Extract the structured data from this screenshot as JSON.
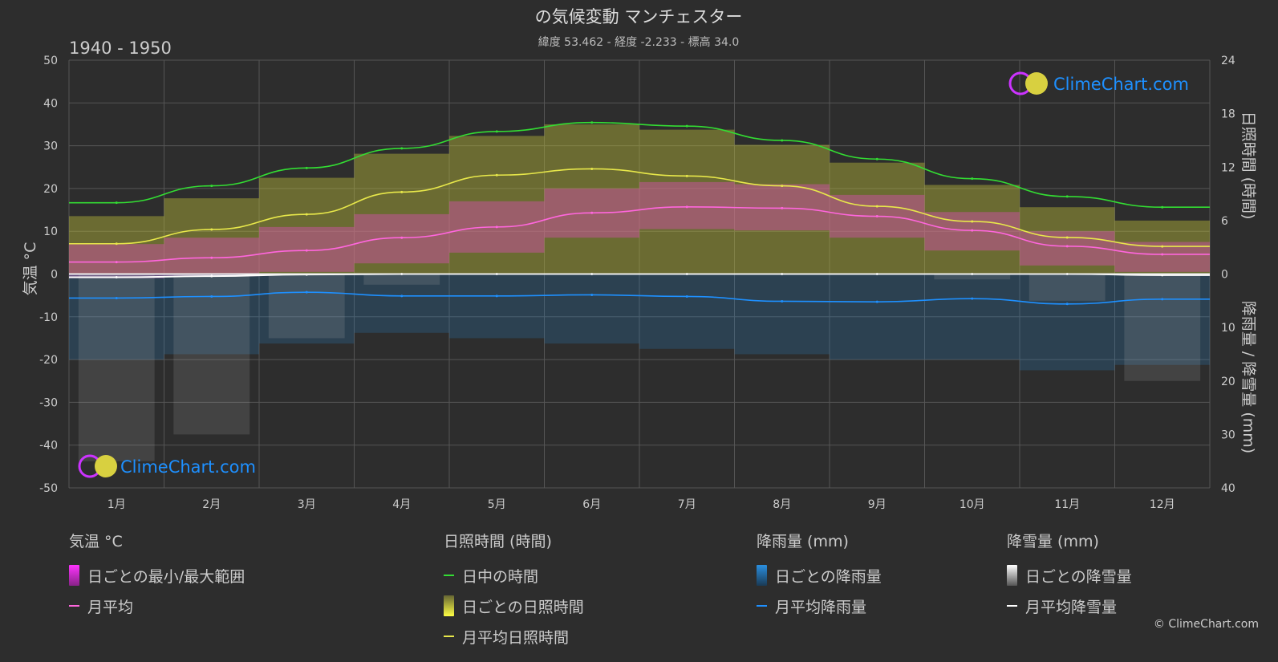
{
  "title": "の気候変動 マンチェスター",
  "subtitle": "緯度 53.462 - 経度 -2.233 - 標高 34.0",
  "period": "1940 - 1950",
  "brand": "ClimeChart.com",
  "copyright": "© ClimeChart.com",
  "colors": {
    "background": "#2d2d2d",
    "grid": "#555555",
    "daylight": "#33dd33",
    "sunshine_mean": "#e8e84a",
    "sunshine_band": "#b8b83a",
    "temp_band": "#d84fb0",
    "temp_mean": "#ff66dd",
    "rain_band": "#2a7fc0",
    "rain_mean": "#1e90ff",
    "snow_band": "#aaaaaa",
    "snow_mean": "#ffffff",
    "brand_text": "#1e90ff"
  },
  "legend": {
    "temp": {
      "heading": "気温 °C",
      "range": "日ごとの最小/最大範囲",
      "mean": "月平均"
    },
    "sun": {
      "heading": "日照時間 (時間)",
      "daylight": "日中の時間",
      "daily": "日ごとの日照時間",
      "mean": "月平均日照時間"
    },
    "rain": {
      "heading": "降雨量 (mm)",
      "daily": "日ごとの降雨量",
      "mean": "月平均降雨量"
    },
    "snow": {
      "heading": "降雪量 (mm)",
      "daily": "日ごとの降雪量",
      "mean": "月平均降雪量"
    }
  },
  "chart_data": {
    "type": "line",
    "categories": [
      "1月",
      "2月",
      "3月",
      "4月",
      "5月",
      "6月",
      "7月",
      "8月",
      "9月",
      "10月",
      "11月",
      "12月"
    ],
    "y_left": {
      "label": "気温 °C",
      "range": [
        -50,
        50
      ],
      "ticks": [
        50,
        40,
        30,
        20,
        10,
        0,
        -10,
        -20,
        -30,
        -40,
        -50
      ]
    },
    "y_right_top": {
      "label": "日照時間 (時間)",
      "range": [
        0,
        24
      ],
      "ticks": [
        24,
        18,
        12,
        6,
        0
      ]
    },
    "y_right_bottom": {
      "label": "降雨量 / 降雪量 (mm)",
      "range": [
        0,
        40
      ],
      "ticks": [
        0,
        10,
        20,
        30,
        40
      ]
    },
    "grid": true,
    "series": [
      {
        "name": "日中の時間",
        "axis": "sunshine_hours",
        "values": [
          8.0,
          9.9,
          11.9,
          14.1,
          16.0,
          17.0,
          16.6,
          15.0,
          12.9,
          10.7,
          8.7,
          7.5
        ]
      },
      {
        "name": "月平均日照時間",
        "axis": "sunshine_hours",
        "values": [
          3.4,
          5.0,
          6.7,
          9.2,
          11.1,
          11.8,
          11.0,
          9.9,
          7.6,
          5.9,
          4.1,
          3.1
        ]
      },
      {
        "name": "月平均",
        "axis": "temperature_c",
        "values": [
          2.8,
          3.8,
          5.5,
          8.5,
          11.0,
          14.3,
          15.7,
          15.4,
          13.5,
          10.2,
          6.5,
          4.6
        ]
      },
      {
        "name": "月平均降雨量",
        "axis": "precipitation_mm",
        "values": [
          4.5,
          4.2,
          3.4,
          4.1,
          4.1,
          3.9,
          4.2,
          5.1,
          5.2,
          4.6,
          5.6,
          4.7
        ]
      },
      {
        "name": "月平均降雪量",
        "axis": "precipitation_mm",
        "values": [
          0.6,
          0.4,
          0.1,
          0.0,
          0.0,
          0.0,
          0.0,
          0.0,
          0.0,
          0.0,
          0.0,
          0.2
        ]
      }
    ],
    "bands": {
      "temp_range": {
        "min": [
          -1.0,
          -0.5,
          0.5,
          2.5,
          5.0,
          8.5,
          10.5,
          10.2,
          8.5,
          5.5,
          2.0,
          0.5
        ],
        "max": [
          7.0,
          8.5,
          11.0,
          14.0,
          17.0,
          20.0,
          21.5,
          21.0,
          18.5,
          14.5,
          10.0,
          7.5
        ]
      },
      "daily_sunshine_max": [
        6.5,
        8.5,
        10.8,
        13.5,
        15.5,
        16.8,
        16.2,
        14.5,
        12.5,
        10.0,
        7.5,
        6.0
      ],
      "daily_rain_max": [
        16,
        15,
        13,
        11,
        12,
        13,
        14,
        15,
        16,
        16,
        18,
        17
      ],
      "daily_snow_max": [
        35,
        30,
        12,
        2,
        0,
        0,
        0,
        0,
        0,
        1,
        5,
        20
      ]
    }
  }
}
